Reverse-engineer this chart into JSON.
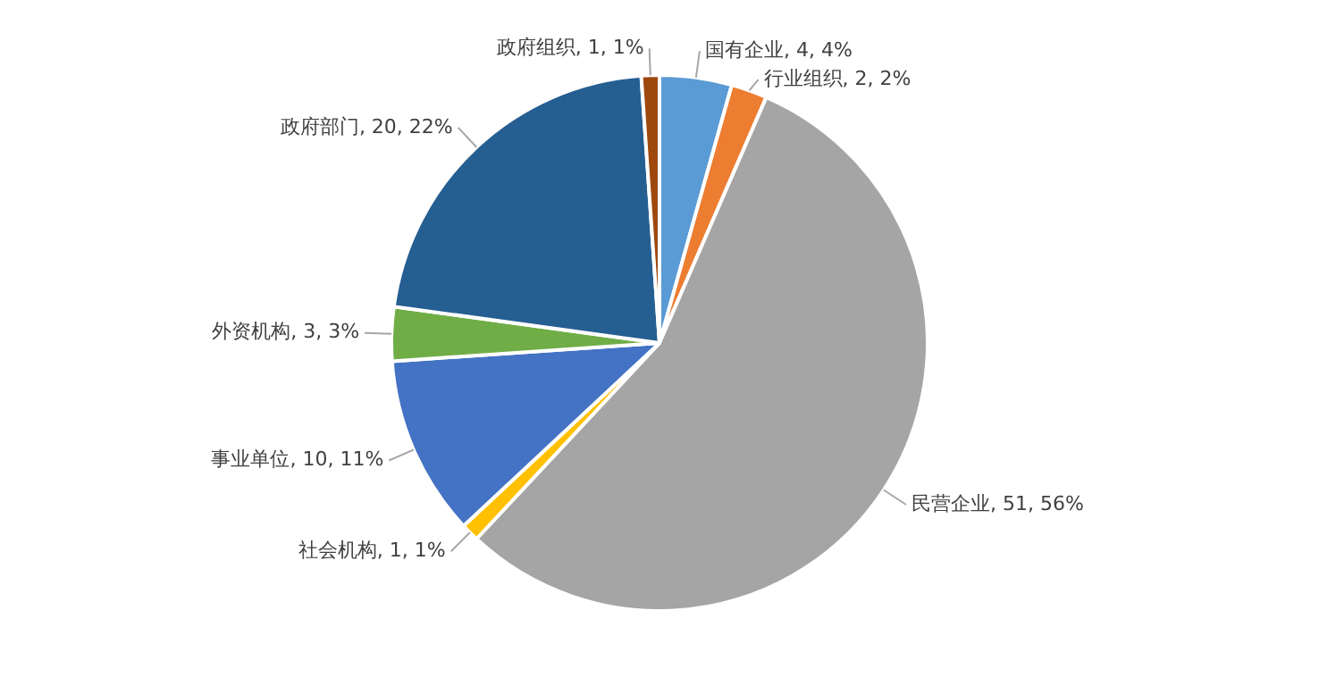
{
  "chart_data": {
    "type": "pie",
    "categories": [
      "国有企业",
      "行业组织",
      "民营企业",
      "社会机构",
      "事业单位",
      "外资机构",
      "政府部门",
      "政府组织"
    ],
    "values": [
      4,
      2,
      51,
      1,
      10,
      3,
      20,
      1
    ],
    "colors": [
      "#5b9bd5",
      "#ed7d31",
      "#a5a5a5",
      "#ffc000",
      "#4472c4",
      "#70ad47",
      "#255e91",
      "#9e480e"
    ],
    "value_labels": [
      "4, 4%",
      "2, 2%",
      "51, 56%",
      "1, 1%",
      "10, 11%",
      "3, 3%",
      "20, 22%",
      "1, 1%"
    ],
    "legend": false
  }
}
